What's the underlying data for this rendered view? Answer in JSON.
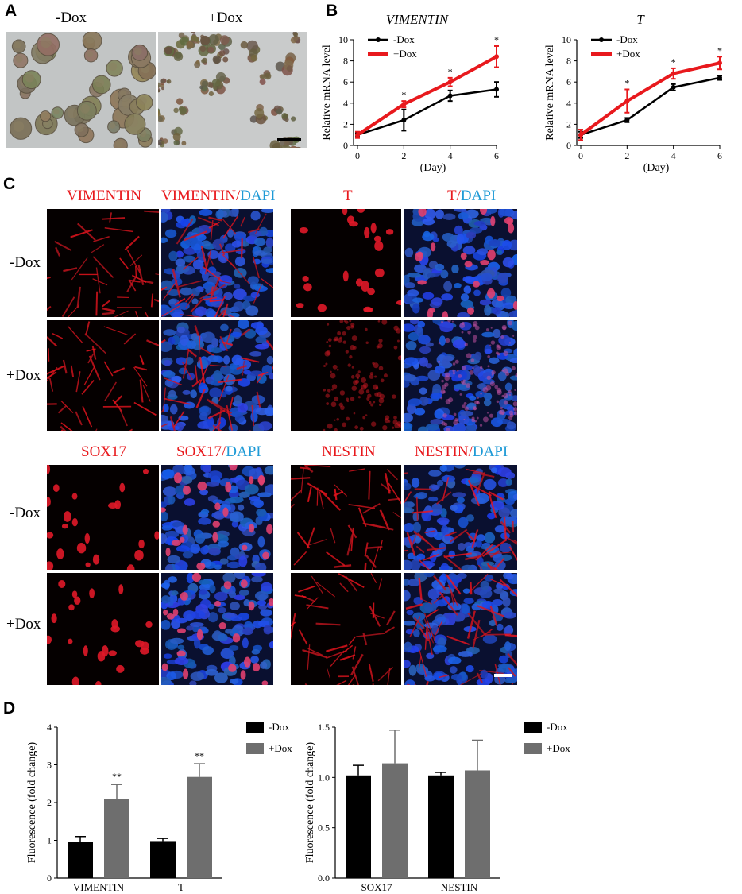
{
  "panels": {
    "A": "A",
    "B": "B",
    "C": "C",
    "D": "D"
  },
  "panelA": {
    "minus_label": "-Dox",
    "plus_label": "+Dox"
  },
  "panelB": {
    "charts": [
      {
        "type": "line",
        "title": "VIMENTIN",
        "ylabel": "Relative mRNA level",
        "xlabel": "(Day)",
        "x": [
          0,
          2,
          4,
          6
        ],
        "ylim": [
          0,
          10
        ],
        "yticks": [
          0,
          2,
          4,
          6,
          8,
          10
        ],
        "series": [
          {
            "name": "-Dox",
            "color": "#000000",
            "values": [
              1.0,
              2.4,
              4.7,
              5.3
            ],
            "err": [
              0.2,
              1.0,
              0.5,
              0.7
            ]
          },
          {
            "name": "+Dox",
            "color": "#e8191d",
            "values": [
              1.0,
              3.9,
              6.0,
              8.4
            ],
            "err": [
              0.3,
              0.3,
              0.4,
              1.0
            ]
          }
        ],
        "annotations": [
          "*",
          "*",
          "*"
        ],
        "legend": "top-left"
      },
      {
        "type": "line",
        "title": "T",
        "ylabel": "Relative mRNA level",
        "xlabel": "(Day)",
        "x": [
          0,
          2,
          4,
          6
        ],
        "ylim": [
          0,
          10
        ],
        "yticks": [
          0,
          2,
          4,
          6,
          8,
          10
        ],
        "series": [
          {
            "name": "-Dox",
            "color": "#000000",
            "values": [
              1.0,
              2.4,
              5.5,
              6.4
            ],
            "err": [
              0.3,
              0.2,
              0.3,
              0.2
            ]
          },
          {
            "name": "+Dox",
            "color": "#e8191d",
            "values": [
              1.0,
              4.2,
              6.8,
              7.8
            ],
            "err": [
              0.5,
              1.1,
              0.5,
              0.6
            ]
          }
        ],
        "annotations": [
          "*",
          "*",
          "*"
        ],
        "legend": "top-left"
      }
    ]
  },
  "panelC": {
    "row_minus": "-Dox",
    "row_plus": "+Dox",
    "groups": [
      {
        "marker": "VIMENTIN",
        "merge_marker": "VIMENTIN",
        "sep": "/",
        "dapi": "DAPI"
      },
      {
        "marker": "T",
        "merge_marker": "T",
        "sep": "/",
        "dapi": "DAPI"
      },
      {
        "marker": "SOX17",
        "merge_marker": "SOX17",
        "sep": "/",
        "dapi": "DAPI"
      },
      {
        "marker": "NESTIN",
        "merge_marker": "NESTIN",
        "sep": "/",
        "dapi": "DAPI"
      }
    ]
  },
  "panelD": {
    "charts": [
      {
        "type": "bar",
        "ylabel": "Fluorescence (fold change)",
        "categories": [
          "VIMENTIN",
          "T"
        ],
        "ylim": [
          0,
          4
        ],
        "yticks": [
          "0",
          "1",
          "2",
          "3",
          "4"
        ],
        "series": [
          {
            "name": "-Dox",
            "color": "#000000",
            "values": [
              0.95,
              0.98
            ],
            "err": [
              0.15,
              0.07
            ]
          },
          {
            "name": "+Dox",
            "color": "#6e6e6e",
            "values": [
              2.1,
              2.68
            ],
            "err": [
              0.38,
              0.35
            ]
          }
        ],
        "annotations": [
          "**",
          "**"
        ],
        "legend": "top-right"
      },
      {
        "type": "bar",
        "ylabel": "Fluorescence (fold change)",
        "categories": [
          "SOX17",
          "NESTIN"
        ],
        "ylim": [
          0,
          1.5
        ],
        "yticks": [
          "0.0",
          "0.5",
          "1.0",
          "1.5"
        ],
        "series": [
          {
            "name": "-Dox",
            "color": "#000000",
            "values": [
              1.02,
              1.02
            ],
            "err": [
              0.1,
              0.03
            ]
          },
          {
            "name": "+Dox",
            "color": "#6e6e6e",
            "values": [
              1.14,
              1.07
            ],
            "err": [
              0.33,
              0.3
            ]
          }
        ],
        "annotations": [],
        "legend": "top-right"
      }
    ]
  }
}
